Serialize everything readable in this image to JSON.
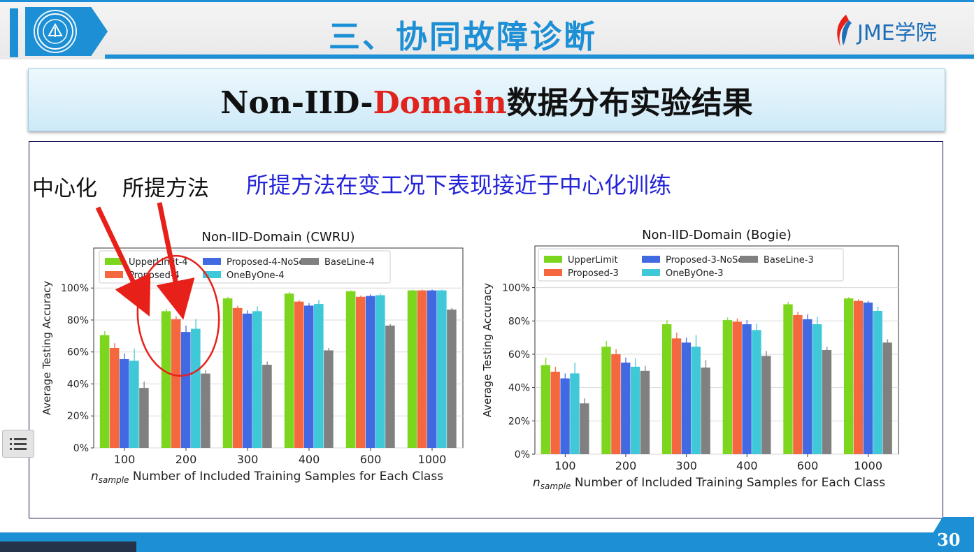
{
  "header": {
    "section_title": "三、协同故障诊断",
    "brand": "JME学院"
  },
  "banner": {
    "title_prefix": "Non-IID-",
    "title_highlight": "Domain",
    "title_suffix": "数据分布实验结果"
  },
  "annotations": {
    "label_central": "中心化",
    "label_proposed": "所提方法",
    "headline": "所提方法在变工况下表现接近于中心化训练"
  },
  "colors": {
    "upper": "#7cd61e",
    "proposed": "#f4673f",
    "noself": "#4169e1",
    "onebyone": "#3ec8d8",
    "baseline": "#808080",
    "annotation_red": "#e8201a",
    "brand_blue": "#1d8fd5"
  },
  "footer": {
    "page_number": "30"
  },
  "chart_data": [
    {
      "type": "bar",
      "title": "Non-IID-Domain (CWRU)",
      "ylabel": "Average Testing Accuracy",
      "xlabel_n": "n",
      "xlabel_sub": "sample",
      "xlabel_rest": " Number of Included Training Samples for Each Class",
      "categories": [
        "100",
        "200",
        "300",
        "400",
        "600",
        "1000"
      ],
      "ylim": [
        0,
        125
      ],
      "yticks": [
        "0%",
        "20%",
        "40%",
        "60%",
        "80%",
        "100%"
      ],
      "grid": true,
      "legend": "top",
      "series": [
        {
          "name": "UpperLimit-4",
          "values": [
            70.5,
            85.5,
            93.5,
            96.5,
            98,
            98.5
          ],
          "errors": [
            2.5,
            1.5,
            1,
            1,
            0.5,
            0.5
          ]
        },
        {
          "name": "Proposed-4",
          "values": [
            62.5,
            80.5,
            87.5,
            91.5,
            94.5,
            98.5
          ],
          "errors": [
            3,
            2,
            1.5,
            1,
            0.8,
            0.5
          ]
        },
        {
          "name": "Proposed-4-NoSelf",
          "values": [
            55.5,
            72.5,
            84,
            89,
            95,
            98.5
          ],
          "errors": [
            3.5,
            4,
            2,
            1.5,
            1,
            0.5
          ]
        },
        {
          "name": "OneByOne-4",
          "values": [
            54.5,
            74.5,
            85.5,
            90,
            95.5,
            98.5
          ],
          "errors": [
            7.5,
            6,
            3,
            2.5,
            1,
            0.5
          ]
        },
        {
          "name": "BaseLine-4",
          "values": [
            37.5,
            46.5,
            52,
            61,
            76.5,
            86.5
          ],
          "errors": [
            4,
            2,
            2,
            1.5,
            1,
            1
          ]
        }
      ]
    },
    {
      "type": "bar",
      "title": "Non-IID-Domain (Bogie)",
      "ylabel": "Average Testing Accuracy",
      "xlabel_n": "n",
      "xlabel_sub": "sample",
      "xlabel_rest": " Number of Included Training Samples for Each Class",
      "categories": [
        "100",
        "200",
        "300",
        "400",
        "600",
        "1000"
      ],
      "ylim": [
        0,
        125
      ],
      "yticks": [
        "0%",
        "20%",
        "40%",
        "60%",
        "80%",
        "100%"
      ],
      "grid": true,
      "legend": "top",
      "series": [
        {
          "name": "UpperLimit",
          "values": [
            53.5,
            64.5,
            78,
            80.5,
            90,
            93.5
          ],
          "errors": [
            4.5,
            3.5,
            2.5,
            1.5,
            1.5,
            0.8
          ]
        },
        {
          "name": "Proposed-3",
          "values": [
            49.5,
            60,
            69.5,
            79.5,
            83.5,
            92
          ],
          "errors": [
            3,
            3,
            3.5,
            2,
            2,
            1
          ]
        },
        {
          "name": "Proposed-3-NoSelf",
          "values": [
            45.5,
            55,
            67,
            78,
            81,
            91
          ],
          "errors": [
            3,
            3,
            3,
            2.5,
            3,
            1
          ]
        },
        {
          "name": "OneByOne-3",
          "values": [
            48.5,
            52.5,
            64.5,
            74.5,
            78,
            86
          ],
          "errors": [
            6.5,
            5,
            7,
            4,
            4.5,
            2.5
          ]
        },
        {
          "name": "BaseLine-3",
          "values": [
            30.5,
            50,
            52,
            59,
            62.5,
            67
          ],
          "errors": [
            3,
            3,
            4.5,
            3,
            2,
            2
          ]
        }
      ]
    }
  ]
}
